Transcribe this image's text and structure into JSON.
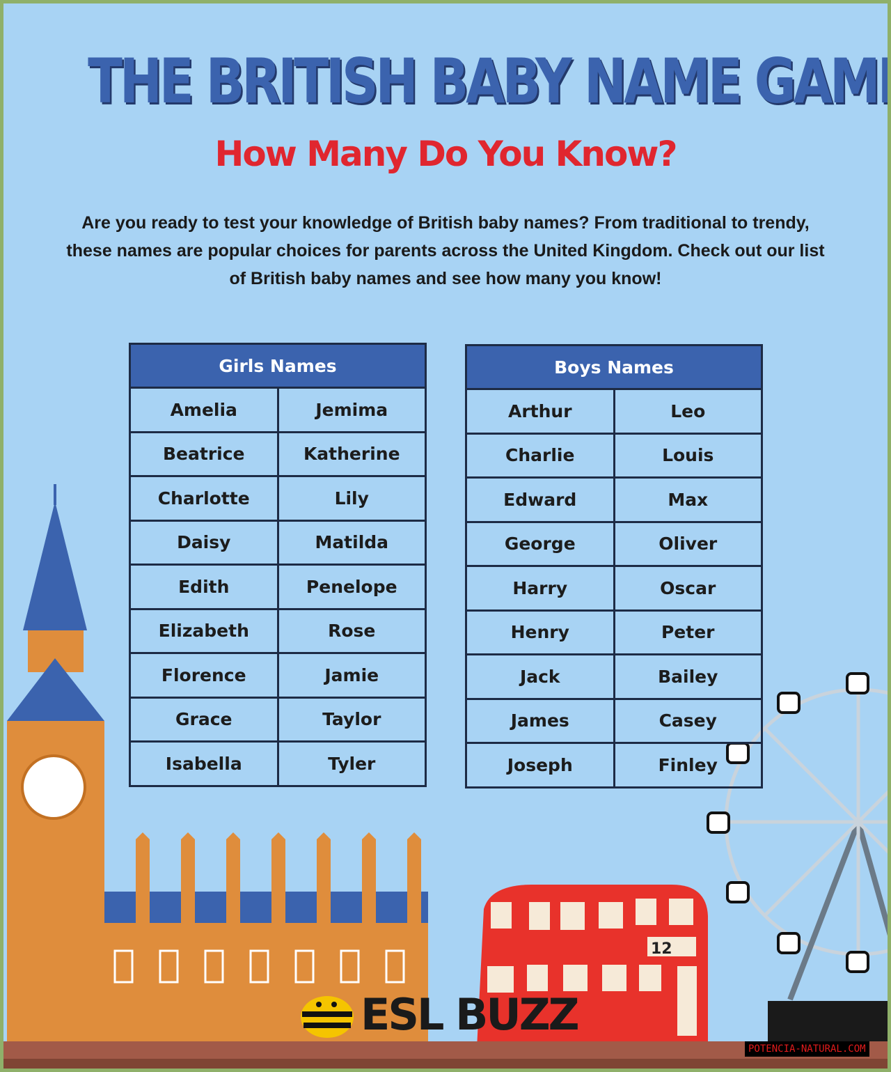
{
  "title": "THE BRITISH BABY NAME GAME",
  "subtitle": "How Many Do You Know?",
  "intro": "Are you ready to test your knowledge of British baby names? From traditional to trendy, these names are popular choices for parents across the United Kingdom. Check out our list of British baby names and see how many you know!",
  "girls": {
    "header": "Girls Names",
    "rows": [
      [
        "Amelia",
        "Jemima"
      ],
      [
        "Beatrice",
        "Katherine"
      ],
      [
        "Charlotte",
        "Lily"
      ],
      [
        "Daisy",
        "Matilda"
      ],
      [
        "Edith",
        "Penelope"
      ],
      [
        "Elizabeth",
        "Rose"
      ],
      [
        "Florence",
        "Jamie"
      ],
      [
        "Grace",
        "Taylor"
      ],
      [
        "Isabella",
        "Tyler"
      ]
    ]
  },
  "boys": {
    "header": "Boys Names",
    "rows": [
      [
        "Arthur",
        "Leo"
      ],
      [
        "Charlie",
        "Louis"
      ],
      [
        "Edward",
        "Max"
      ],
      [
        "George",
        "Oliver"
      ],
      [
        "Harry",
        "Oscar"
      ],
      [
        "Henry",
        "Peter"
      ],
      [
        "Jack",
        "Bailey"
      ],
      [
        "James",
        "Casey"
      ],
      [
        "Joseph",
        "Finley"
      ]
    ]
  },
  "logo": "ESL BUZZ",
  "bus_sign": "12",
  "watermark": "POTENCIA-NATURAL.COM",
  "colors": {
    "background": "#a8d3f4",
    "title": "#3b63ae",
    "subtitle": "#e0262f",
    "table_header": "#3b63ae",
    "bus": "#e8322b",
    "tower": "#df8d3c"
  }
}
